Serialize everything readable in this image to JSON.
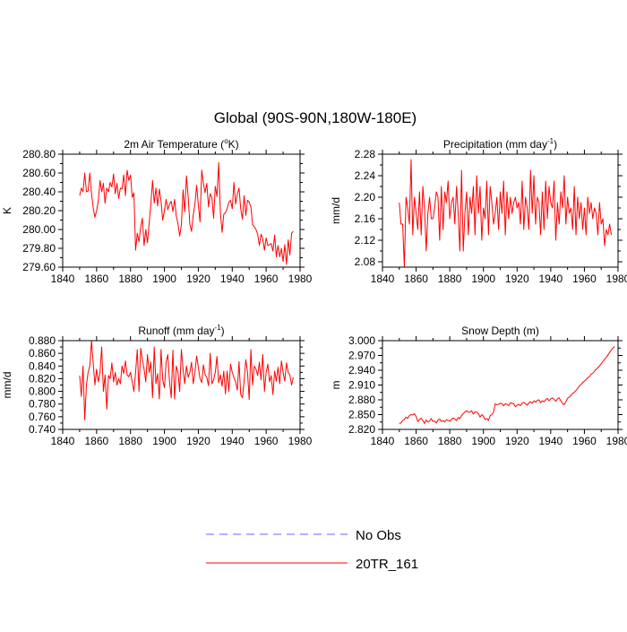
{
  "figure": {
    "title": "Global (90S-90N,180W-180E)"
  },
  "legend": {
    "entries": [
      {
        "label": "No Obs",
        "color": "#6666ff",
        "style": "dashed"
      },
      {
        "label": "20TR_161",
        "color": "#ff0000",
        "style": "solid"
      }
    ]
  },
  "chart_data": [
    {
      "type": "line",
      "title": "2m Air Temperature",
      "title_unit": "(°K)",
      "title_unit_parts": [
        "(",
        "o",
        "K)"
      ],
      "ylabel": "K",
      "xlim": [
        1840,
        1980
      ],
      "ylim": [
        279.6,
        280.8
      ],
      "x_ticks": [
        1840,
        1860,
        1880,
        1900,
        1920,
        1940,
        1960,
        1980
      ],
      "y_ticks": [
        279.6,
        279.8,
        280.0,
        280.2,
        280.4,
        280.6,
        280.8
      ],
      "y_tick_labels": [
        "279.60",
        "279.80",
        "280.00",
        "280.20",
        "280.40",
        "280.60",
        "280.80"
      ],
      "series": [
        {
          "name": "20TR_161",
          "color": "#ff0000",
          "x_start": 1850,
          "values": [
            280.36,
            280.44,
            280.4,
            280.6,
            280.4,
            280.41,
            280.6,
            280.38,
            280.23,
            280.13,
            280.2,
            280.3,
            280.52,
            280.4,
            280.49,
            280.28,
            280.44,
            280.4,
            280.5,
            280.45,
            280.59,
            280.38,
            280.49,
            280.33,
            280.44,
            280.43,
            280.58,
            280.36,
            280.63,
            280.52,
            280.58,
            280.34,
            280.39,
            279.78,
            279.96,
            279.87,
            280.02,
            280.12,
            279.83,
            280.0,
            279.86,
            280.07,
            280.27,
            280.52,
            280.28,
            280.44,
            280.25,
            280.43,
            280.3,
            280.1,
            280.2,
            280.32,
            280.21,
            280.27,
            280.3,
            280.19,
            280.32,
            280.14,
            280.06,
            279.93,
            280.05,
            280.42,
            280.19,
            280.57,
            280.35,
            280.06,
            279.98,
            280.15,
            280.27,
            280.47,
            280.26,
            280.08,
            280.63,
            280.49,
            280.39,
            280.49,
            280.24,
            280.38,
            280.34,
            280.12,
            280.46,
            280.35,
            280.71,
            280.18,
            279.97,
            280.16,
            280.18,
            280.22,
            280.29,
            280.31,
            280.22,
            280.5,
            280.27,
            280.38,
            280.44,
            280.22,
            280.11,
            280.36,
            280.15,
            280.31,
            280.29,
            280.24,
            280.05,
            280.03,
            280.0,
            279.95,
            279.83,
            279.95,
            279.9,
            279.78,
            279.91,
            279.83,
            279.84,
            279.85,
            279.77,
            279.94,
            279.71,
            279.83,
            279.71,
            279.8,
            279.66,
            279.84,
            279.63,
            279.89,
            279.73,
            279.96,
            279.98
          ]
        }
      ]
    },
    {
      "type": "line",
      "title": "Precipitation",
      "title_unit": "(mm day-1)",
      "title_unit_parts": [
        "(mm day",
        "-1",
        ")"
      ],
      "ylabel": "mm/d",
      "xlim": [
        1840,
        1980
      ],
      "ylim": [
        2.07,
        2.28
      ],
      "x_ticks": [
        1840,
        1860,
        1880,
        1900,
        1920,
        1940,
        1960,
        1980
      ],
      "y_ticks": [
        2.08,
        2.12,
        2.16,
        2.2,
        2.24,
        2.28
      ],
      "y_tick_labels": [
        "2.08",
        "2.12",
        "2.16",
        "2.20",
        "2.24",
        "2.28"
      ],
      "series": [
        {
          "name": "20TR_161",
          "color": "#ff0000",
          "x_start": 1850,
          "values": [
            2.19,
            2.15,
            2.15,
            2.07,
            2.2,
            2.18,
            2.15,
            2.27,
            2.13,
            2.2,
            2.17,
            2.14,
            2.21,
            2.13,
            2.22,
            2.18,
            2.1,
            2.17,
            2.2,
            2.16,
            2.16,
            2.18,
            2.21,
            2.2,
            2.12,
            2.22,
            2.14,
            2.21,
            2.19,
            2.23,
            2.16,
            2.19,
            2.2,
            2.15,
            2.22,
            2.17,
            2.1,
            2.25,
            2.1,
            2.17,
            2.21,
            2.13,
            2.2,
            2.17,
            2.22,
            2.13,
            2.24,
            2.17,
            2.22,
            2.12,
            2.18,
            2.16,
            2.23,
            2.13,
            2.22,
            2.19,
            2.15,
            2.17,
            2.2,
            2.14,
            2.21,
            2.17,
            2.23,
            2.13,
            2.21,
            2.16,
            2.2,
            2.17,
            2.19,
            2.2,
            2.18,
            2.19,
            2.15,
            2.23,
            2.14,
            2.2,
            2.18,
            2.14,
            2.25,
            2.17,
            2.24,
            2.15,
            2.2,
            2.19,
            2.13,
            2.21,
            2.14,
            2.23,
            2.16,
            2.22,
            2.19,
            2.18,
            2.23,
            2.12,
            2.19,
            2.15,
            2.21,
            2.18,
            2.24,
            2.15,
            2.2,
            2.17,
            2.18,
            2.14,
            2.22,
            2.13,
            2.2,
            2.16,
            2.19,
            2.14,
            2.18,
            2.13,
            2.2,
            2.17,
            2.19,
            2.16,
            2.18,
            2.17,
            2.13,
            2.19,
            2.15,
            2.16,
            2.11,
            2.14,
            2.13,
            2.15,
            2.13
          ]
        }
      ]
    },
    {
      "type": "line",
      "title": "Runoff",
      "title_unit": "(mm day-1)",
      "title_unit_parts": [
        "(mm day",
        "-1",
        ")"
      ],
      "ylabel": "mm/d",
      "xlim": [
        1840,
        1980
      ],
      "ylim": [
        0.74,
        0.88
      ],
      "x_ticks": [
        1840,
        1860,
        1880,
        1900,
        1920,
        1940,
        1960,
        1980
      ],
      "y_ticks": [
        0.74,
        0.76,
        0.78,
        0.8,
        0.82,
        0.84,
        0.86,
        0.88
      ],
      "y_tick_labels": [
        "0.740",
        "0.760",
        "0.780",
        "0.800",
        "0.820",
        "0.840",
        "0.860",
        "0.880"
      ],
      "series": [
        {
          "name": "20TR_161",
          "color": "#ff0000",
          "x_start": 1850,
          "values": [
            0.825,
            0.792,
            0.84,
            0.755,
            0.81,
            0.83,
            0.84,
            0.88,
            0.845,
            0.81,
            0.835,
            0.815,
            0.83,
            0.87,
            0.8,
            0.826,
            0.772,
            0.825,
            0.82,
            0.845,
            0.815,
            0.83,
            0.81,
            0.82,
            0.812,
            0.84,
            0.828,
            0.848,
            0.826,
            0.823,
            0.83,
            0.815,
            0.8,
            0.83,
            0.866,
            0.8,
            0.868,
            0.85,
            0.835,
            0.815,
            0.858,
            0.83,
            0.846,
            0.79,
            0.87,
            0.812,
            0.828,
            0.788,
            0.866,
            0.818,
            0.806,
            0.846,
            0.858,
            0.815,
            0.79,
            0.865,
            0.788,
            0.84,
            0.83,
            0.8,
            0.866,
            0.835,
            0.812,
            0.84,
            0.822,
            0.83,
            0.846,
            0.812,
            0.83,
            0.856,
            0.838,
            0.82,
            0.814,
            0.842,
            0.826,
            0.822,
            0.809,
            0.86,
            0.812,
            0.818,
            0.83,
            0.855,
            0.814,
            0.826,
            0.808,
            0.832,
            0.796,
            0.832,
            0.8,
            0.843,
            0.83,
            0.822,
            0.815,
            0.802,
            0.847,
            0.795,
            0.79,
            0.817,
            0.85,
            0.83,
            0.787,
            0.866,
            0.81,
            0.84,
            0.835,
            0.825,
            0.846,
            0.818,
            0.858,
            0.8,
            0.83,
            0.843,
            0.815,
            0.825,
            0.795,
            0.832,
            0.816,
            0.838,
            0.812,
            0.848,
            0.83,
            0.816,
            0.845,
            0.83,
            0.826,
            0.81,
            0.822
          ]
        }
      ]
    },
    {
      "type": "line",
      "title": "Snow Depth (m)",
      "title_unit": "",
      "title_unit_parts": [],
      "ylabel": "m",
      "xlim": [
        1840,
        1980
      ],
      "ylim": [
        2.82,
        3.0
      ],
      "x_ticks": [
        1840,
        1860,
        1880,
        1900,
        1920,
        1940,
        1960,
        1980
      ],
      "y_ticks": [
        2.82,
        2.85,
        2.88,
        2.91,
        2.94,
        2.97,
        3.0
      ],
      "y_tick_labels": [
        "2.820",
        "2.850",
        "2.880",
        "2.910",
        "2.940",
        "2.970",
        "3.000"
      ],
      "series": [
        {
          "name": "20TR_161",
          "color": "#ff0000",
          "x_start": 1850,
          "values": [
            2.832,
            2.833,
            2.838,
            2.84,
            2.845,
            2.842,
            2.848,
            2.85,
            2.849,
            2.852,
            2.846,
            2.836,
            2.84,
            2.843,
            2.838,
            2.832,
            2.839,
            2.835,
            2.837,
            2.842,
            2.836,
            2.837,
            2.833,
            2.839,
            2.841,
            2.836,
            2.838,
            2.835,
            2.84,
            2.838,
            2.837,
            2.84,
            2.843,
            2.841,
            2.838,
            2.844,
            2.842,
            2.848,
            2.852,
            2.855,
            2.858,
            2.855,
            2.855,
            2.858,
            2.851,
            2.856,
            2.855,
            2.852,
            2.845,
            2.85,
            2.847,
            2.84,
            2.842,
            2.838,
            2.848,
            2.85,
            2.855,
            2.872,
            2.87,
            2.871,
            2.873,
            2.872,
            2.868,
            2.872,
            2.871,
            2.868,
            2.874,
            2.873,
            2.872,
            2.866,
            2.869,
            2.871,
            2.868,
            2.873,
            2.875,
            2.872,
            2.869,
            2.874,
            2.876,
            2.873,
            2.878,
            2.875,
            2.879,
            2.88,
            2.874,
            2.878,
            2.876,
            2.88,
            2.883,
            2.878,
            2.882,
            2.884,
            2.881,
            2.877,
            2.882,
            2.884,
            2.878,
            2.873,
            2.87,
            2.876,
            2.883,
            2.885,
            2.889,
            2.893,
            2.895,
            2.899,
            2.903,
            2.908,
            2.911,
            2.915,
            2.918,
            2.921,
            2.925,
            2.927,
            2.932,
            2.934,
            2.938,
            2.942,
            2.945,
            2.949,
            2.953,
            2.958,
            2.962,
            2.966,
            2.971,
            2.976,
            2.981,
            2.985,
            2.988
          ]
        }
      ]
    }
  ]
}
